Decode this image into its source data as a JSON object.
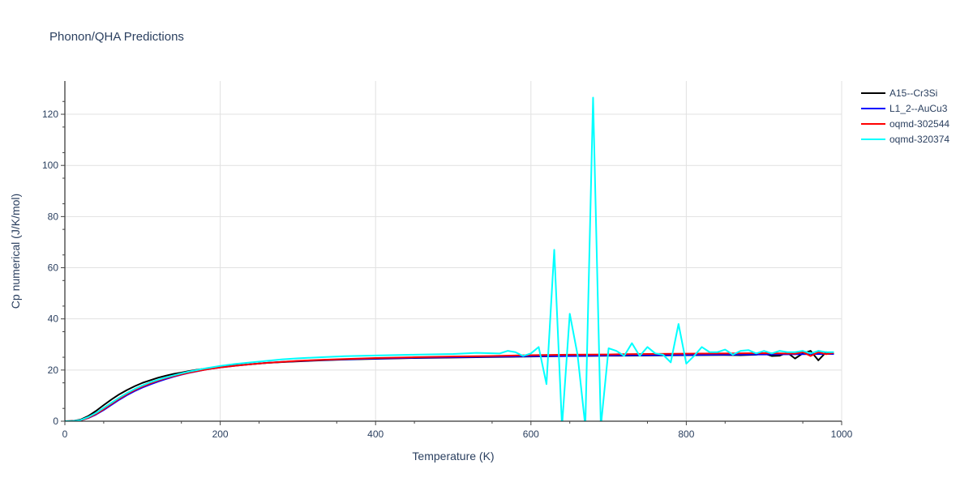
{
  "chart_data": {
    "type": "line",
    "title": "Phonon/QHA Predictions",
    "xlabel": "Temperature (K)",
    "ylabel": "Cp numerical (J/K/mol)",
    "xlim": [
      0,
      1000
    ],
    "ylim": [
      0,
      133
    ],
    "x_ticks": [
      0,
      200,
      400,
      600,
      800,
      1000
    ],
    "x_tick_labels": [
      "0",
      "200",
      "400",
      "600",
      "800",
      "1000"
    ],
    "y_ticks": [
      0,
      20,
      40,
      60,
      80,
      100,
      120
    ],
    "y_tick_labels": [
      "0",
      "20",
      "40",
      "60",
      "80",
      "100",
      "120"
    ],
    "grid": true,
    "legend_position": "top-right",
    "series": [
      {
        "name": "A15--Cr3Si",
        "color": "#000000",
        "points": [
          [
            0,
            0
          ],
          [
            10,
            0.1
          ],
          [
            20,
            0.6
          ],
          [
            30,
            2
          ],
          [
            40,
            4
          ],
          [
            50,
            6.3
          ],
          [
            60,
            8.5
          ],
          [
            70,
            10.5
          ],
          [
            80,
            12.2
          ],
          [
            90,
            13.7
          ],
          [
            100,
            15
          ],
          [
            110,
            16
          ],
          [
            120,
            17
          ],
          [
            130,
            17.8
          ],
          [
            140,
            18.5
          ],
          [
            150,
            19
          ],
          [
            160,
            19.6
          ],
          [
            170,
            20.1
          ],
          [
            180,
            20.5
          ],
          [
            190,
            20.9
          ],
          [
            200,
            21.2
          ],
          [
            220,
            21.8
          ],
          [
            240,
            22.3
          ],
          [
            260,
            22.8
          ],
          [
            280,
            23.1
          ],
          [
            300,
            23.4
          ],
          [
            330,
            23.8
          ],
          [
            360,
            24.1
          ],
          [
            400,
            24.4
          ],
          [
            450,
            24.7
          ],
          [
            500,
            24.9
          ],
          [
            550,
            25.1
          ],
          [
            600,
            25.3
          ],
          [
            650,
            25.5
          ],
          [
            700,
            25.6
          ],
          [
            750,
            25.7
          ],
          [
            800,
            25.8
          ],
          [
            850,
            25.9
          ],
          [
            870,
            25.8
          ],
          [
            890,
            26
          ],
          [
            900,
            26.5
          ],
          [
            910,
            25.5
          ],
          [
            920,
            25.6
          ],
          [
            930,
            26.8
          ],
          [
            940,
            24.5
          ],
          [
            950,
            26.5
          ],
          [
            960,
            27.5
          ],
          [
            970,
            23.8
          ],
          [
            980,
            27
          ],
          [
            990,
            26.3
          ]
        ]
      },
      {
        "name": "L1_2--AuCu3",
        "color": "#0000ff",
        "points": [
          [
            0,
            0
          ],
          [
            10,
            0.03
          ],
          [
            20,
            0.3
          ],
          [
            30,
            1.2
          ],
          [
            40,
            2.6
          ],
          [
            50,
            4.4
          ],
          [
            60,
            6.4
          ],
          [
            70,
            8.4
          ],
          [
            80,
            10.2
          ],
          [
            90,
            11.8
          ],
          [
            100,
            13.2
          ],
          [
            110,
            14.4
          ],
          [
            120,
            15.5
          ],
          [
            130,
            16.5
          ],
          [
            140,
            17.4
          ],
          [
            150,
            18.2
          ],
          [
            160,
            18.9
          ],
          [
            170,
            19.5
          ],
          [
            180,
            20.1
          ],
          [
            190,
            20.6
          ],
          [
            200,
            21
          ],
          [
            220,
            21.7
          ],
          [
            240,
            22.3
          ],
          [
            260,
            22.8
          ],
          [
            280,
            23.2
          ],
          [
            300,
            23.5
          ],
          [
            330,
            23.9
          ],
          [
            360,
            24.2
          ],
          [
            400,
            24.5
          ],
          [
            450,
            24.8
          ],
          [
            500,
            25
          ],
          [
            550,
            25.2
          ],
          [
            600,
            25.4
          ],
          [
            650,
            25.5
          ],
          [
            700,
            25.7
          ],
          [
            750,
            25.8
          ],
          [
            800,
            25.9
          ],
          [
            850,
            26
          ],
          [
            900,
            26.1
          ],
          [
            950,
            26.2
          ],
          [
            990,
            26.3
          ]
        ]
      },
      {
        "name": "oqmd-302544",
        "color": "#ff0000",
        "points": [
          [
            0,
            0
          ],
          [
            10,
            0.03
          ],
          [
            20,
            0.3
          ],
          [
            30,
            1.3
          ],
          [
            40,
            2.8
          ],
          [
            50,
            4.7
          ],
          [
            60,
            6.8
          ],
          [
            70,
            8.8
          ],
          [
            80,
            10.6
          ],
          [
            90,
            12.2
          ],
          [
            100,
            13.6
          ],
          [
            110,
            14.8
          ],
          [
            120,
            15.9
          ],
          [
            130,
            16.8
          ],
          [
            140,
            17.6
          ],
          [
            150,
            18.3
          ],
          [
            160,
            19
          ],
          [
            170,
            19.6
          ],
          [
            180,
            20.1
          ],
          [
            190,
            20.6
          ],
          [
            200,
            21
          ],
          [
            220,
            21.7
          ],
          [
            240,
            22.3
          ],
          [
            260,
            22.8
          ],
          [
            280,
            23.2
          ],
          [
            300,
            23.6
          ],
          [
            330,
            24
          ],
          [
            360,
            24.3
          ],
          [
            400,
            24.7
          ],
          [
            450,
            25
          ],
          [
            500,
            25.3
          ],
          [
            550,
            25.5
          ],
          [
            600,
            25.8
          ],
          [
            650,
            26
          ],
          [
            700,
            26.1
          ],
          [
            750,
            26.3
          ],
          [
            800,
            26.4
          ],
          [
            850,
            26.5
          ],
          [
            900,
            26.6
          ],
          [
            940,
            26.4
          ],
          [
            950,
            27
          ],
          [
            960,
            25.5
          ],
          [
            970,
            27
          ],
          [
            980,
            26.2
          ],
          [
            990,
            26.7
          ]
        ]
      },
      {
        "name": "oqmd-320374",
        "color": "#00ffff",
        "points": [
          [
            0,
            0
          ],
          [
            10,
            0.04
          ],
          [
            20,
            0.4
          ],
          [
            30,
            1.6
          ],
          [
            40,
            3.2
          ],
          [
            50,
            5.2
          ],
          [
            60,
            7.2
          ],
          [
            70,
            9.2
          ],
          [
            80,
            11
          ],
          [
            90,
            12.6
          ],
          [
            100,
            14
          ],
          [
            110,
            15.2
          ],
          [
            120,
            16.2
          ],
          [
            130,
            17.1
          ],
          [
            140,
            17.9
          ],
          [
            150,
            18.7
          ],
          [
            160,
            19.4
          ],
          [
            170,
            20
          ],
          [
            180,
            20.6
          ],
          [
            190,
            21.1
          ],
          [
            200,
            21.6
          ],
          [
            220,
            22.4
          ],
          [
            240,
            23
          ],
          [
            260,
            23.6
          ],
          [
            280,
            24.2
          ],
          [
            300,
            24.6
          ],
          [
            330,
            25
          ],
          [
            360,
            25.4
          ],
          [
            400,
            25.7
          ],
          [
            450,
            26
          ],
          [
            500,
            26.3
          ],
          [
            530,
            26.7
          ],
          [
            560,
            26.5
          ],
          [
            570,
            27.5
          ],
          [
            580,
            27
          ],
          [
            590,
            25.5
          ],
          [
            600,
            26.5
          ],
          [
            610,
            29
          ],
          [
            620,
            14.5
          ],
          [
            630,
            67
          ],
          [
            640,
            -2
          ],
          [
            650,
            42
          ],
          [
            660,
            26
          ],
          [
            670,
            -2
          ],
          [
            680,
            126.5
          ],
          [
            690,
            -2
          ],
          [
            700,
            28.5
          ],
          [
            710,
            27.5
          ],
          [
            720,
            25.5
          ],
          [
            730,
            30.5
          ],
          [
            740,
            25.5
          ],
          [
            750,
            29
          ],
          [
            760,
            26.5
          ],
          [
            770,
            26
          ],
          [
            780,
            23
          ],
          [
            790,
            38
          ],
          [
            800,
            22.5
          ],
          [
            810,
            25.5
          ],
          [
            820,
            29
          ],
          [
            830,
            27
          ],
          [
            840,
            27
          ],
          [
            850,
            28
          ],
          [
            860,
            26
          ],
          [
            870,
            27.5
          ],
          [
            880,
            27.8
          ],
          [
            890,
            26.5
          ],
          [
            900,
            27.5
          ],
          [
            910,
            26.5
          ],
          [
            920,
            27.5
          ],
          [
            930,
            27
          ],
          [
            940,
            27
          ],
          [
            950,
            27.5
          ],
          [
            960,
            26.5
          ],
          [
            970,
            27.5
          ],
          [
            980,
            27
          ],
          [
            990,
            27
          ]
        ]
      }
    ]
  }
}
